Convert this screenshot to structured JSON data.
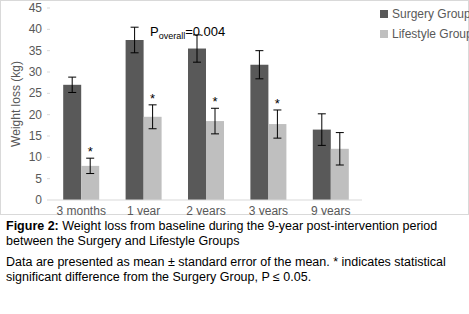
{
  "chart_data": {
    "type": "bar",
    "categories": [
      "3 months",
      "1 year",
      "2 years",
      "3 years",
      "9 years"
    ],
    "series": [
      {
        "name": "Surgery Group",
        "color": "#595959",
        "values": [
          27,
          37.5,
          35.5,
          31.7,
          16.5
        ],
        "errors": [
          1.8,
          3,
          3.2,
          3.3,
          3.7
        ]
      },
      {
        "name": "Lifestyle Group",
        "color": "#bfbfbf",
        "values": [
          8,
          19.5,
          18.5,
          17.8,
          12
        ],
        "errors": [
          1.8,
          2.8,
          3,
          3.3,
          3.8
        ],
        "significance": [
          "*",
          "*",
          "*",
          "*",
          null
        ]
      }
    ],
    "y_label": "Weight loss (kg)",
    "ylim": [
      0,
      45
    ],
    "yticks": [
      0,
      5,
      10,
      15,
      20,
      25,
      30,
      35,
      40,
      45
    ],
    "grid": false,
    "legend": "top-right",
    "annotation": {
      "text": "P",
      "subscript": "overall",
      "suffix": "=0.004"
    },
    "caption": {
      "label": "Figure 2:",
      "text": "Weight loss from baseline during the 9-year post-intervention period between the Surgery and Lifestyle Groups"
    },
    "note": "Data are presented as mean ± standard error of the mean. * indicates statistical significant difference from the Surgery Group, P ≤ 0.05."
  }
}
